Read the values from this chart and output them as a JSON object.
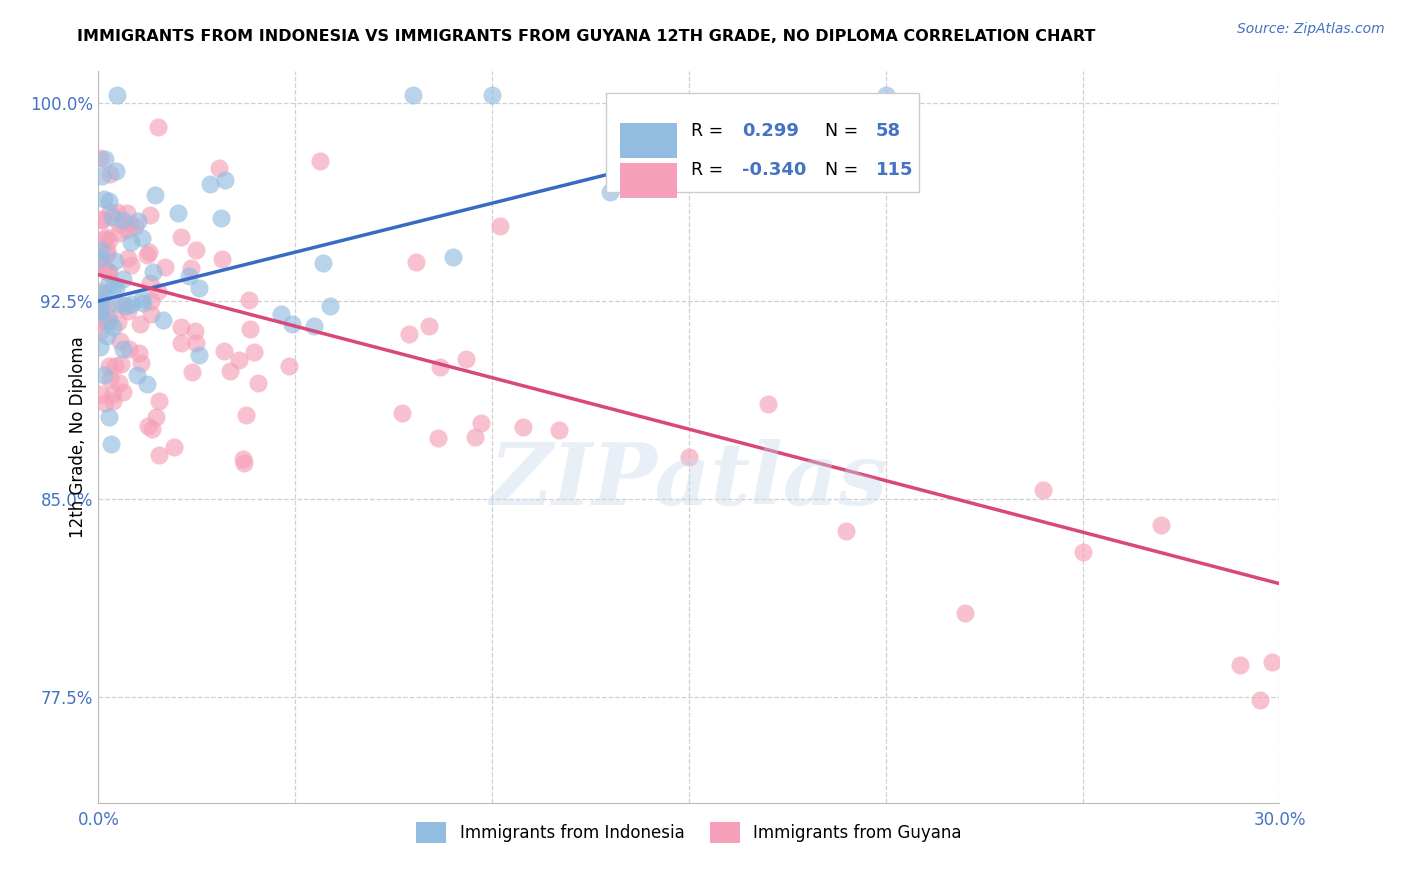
{
  "title": "IMMIGRANTS FROM INDONESIA VS IMMIGRANTS FROM GUYANA 12TH GRADE, NO DIPLOMA CORRELATION CHART",
  "source": "Source: ZipAtlas.com",
  "ylabel": "12th Grade, No Diploma",
  "xlim": [
    0.0,
    0.3
  ],
  "ylim": [
    0.735,
    1.012
  ],
  "xtick_positions": [
    0.0,
    0.05,
    0.1,
    0.15,
    0.2,
    0.25,
    0.3
  ],
  "xticklabels": [
    "0.0%",
    "",
    "",
    "",
    "",
    "",
    "30.0%"
  ],
  "ytick_positions": [
    0.775,
    0.85,
    0.925,
    1.0
  ],
  "yticklabels": [
    "77.5%",
    "85.0%",
    "92.5%",
    "100.0%"
  ],
  "R_indonesia": 0.299,
  "N_indonesia": 58,
  "R_guyana": -0.34,
  "N_guyana": 115,
  "color_indonesia": "#92bce0",
  "color_guyana": "#f5a0b8",
  "trend_color_indonesia": "#3a6bc4",
  "trend_color_guyana": "#d94878",
  "watermark": "ZIPatlas",
  "grid_color": "#d0d0d0",
  "tick_color": "#4472c4",
  "ind_trend_x0": 0.0,
  "ind_trend_y0": 0.925,
  "ind_trend_x1": 0.205,
  "ind_trend_y1": 1.001,
  "guy_trend_x0": 0.0,
  "guy_trend_y0": 0.935,
  "guy_trend_x1": 0.3,
  "guy_trend_y1": 0.818
}
